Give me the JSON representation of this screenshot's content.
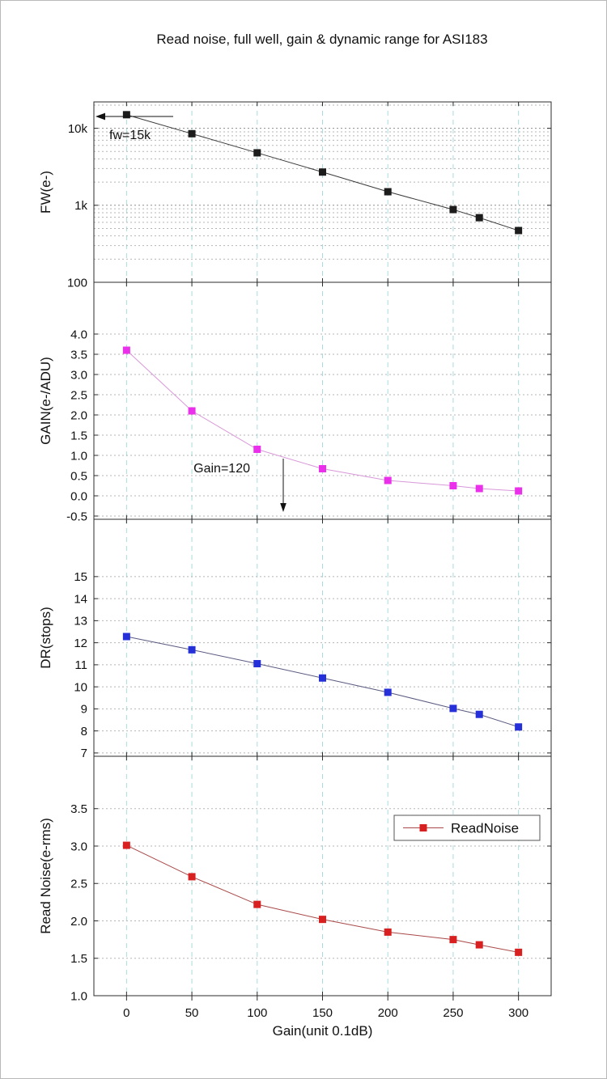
{
  "title": "Read noise, full well, gain & dynamic range for ASI183",
  "xlabel": "Gain(unit 0.1dB)",
  "x_ticks": [
    0,
    50,
    100,
    150,
    200,
    250,
    300
  ],
  "colors": {
    "v_grid": "#a9dcdc",
    "h_grid": "#b5b5b5",
    "h_grid_major": "#8d8d8d",
    "axis": "#2b2b2b",
    "text": "#111111"
  },
  "chart_data": [
    {
      "type": "line",
      "name": "full-well",
      "ylabel": "FW(e-)",
      "yscale": "log",
      "ylim": [
        100,
        22000
      ],
      "ytick_values": [
        100,
        1000,
        10000
      ],
      "ytick_labels": [
        "100",
        "1k",
        "10k"
      ],
      "x": [
        0,
        50,
        100,
        150,
        200,
        250,
        270,
        300
      ],
      "values": [
        15000,
        8500,
        4800,
        2700,
        1500,
        880,
        690,
        470
      ],
      "marker_color": "#1c1c1c",
      "line_color": "#3a3a3a",
      "annotation": "fw=15k"
    },
    {
      "type": "line",
      "name": "gain",
      "ylabel": "GAIN(e-/ADU)",
      "yscale": "linear",
      "ylim": [
        -0.58,
        5.28
      ],
      "ytick_values": [
        -0.5,
        0,
        0.5,
        1,
        1.5,
        2,
        2.5,
        3,
        3.5,
        4
      ],
      "ytick_labels": [
        "-0.5",
        "0.0",
        "0.5",
        "1.0",
        "1.5",
        "2.0",
        "2.5",
        "3.0",
        "3.5",
        "4.0"
      ],
      "x": [
        0,
        50,
        100,
        150,
        200,
        250,
        270,
        300
      ],
      "values": [
        3.6,
        2.1,
        1.15,
        0.67,
        0.38,
        0.25,
        0.18,
        0.12
      ],
      "marker_color": "#ea30ea",
      "line_color": "#d898d8",
      "annotation": "Gain=120"
    },
    {
      "type": "line",
      "name": "dynamic-range",
      "ylabel": "DR(stops)",
      "yscale": "linear",
      "ylim": [
        6.85,
        17.6
      ],
      "ytick_values": [
        7,
        8,
        9,
        10,
        11,
        12,
        13,
        14,
        15
      ],
      "ytick_labels": [
        "7",
        "8",
        "9",
        "10",
        "11",
        "12",
        "13",
        "14",
        "15"
      ],
      "x": [
        0,
        50,
        100,
        150,
        200,
        250,
        270,
        300
      ],
      "values": [
        12.28,
        11.68,
        11.05,
        10.4,
        9.75,
        9.02,
        8.75,
        8.18
      ],
      "marker_color": "#2530d8",
      "line_color": "#5a5a80",
      "annotation": ""
    },
    {
      "type": "line",
      "name": "read-noise",
      "ylabel": "Read Noise(e-rms)",
      "yscale": "linear",
      "ylim": [
        1.0,
        4.2
      ],
      "ytick_values": [
        1,
        1.5,
        2,
        2.5,
        3,
        3.5
      ],
      "ytick_labels": [
        "1.0",
        "1.5",
        "2.0",
        "2.5",
        "3.0",
        "3.5"
      ],
      "x": [
        0,
        50,
        100,
        150,
        200,
        250,
        270,
        300
      ],
      "values": [
        3.01,
        2.59,
        2.22,
        2.02,
        1.85,
        1.75,
        1.68,
        1.58
      ],
      "marker_color": "#d82020",
      "line_color": "#a84848",
      "annotation": "",
      "legend": "ReadNoise"
    }
  ]
}
